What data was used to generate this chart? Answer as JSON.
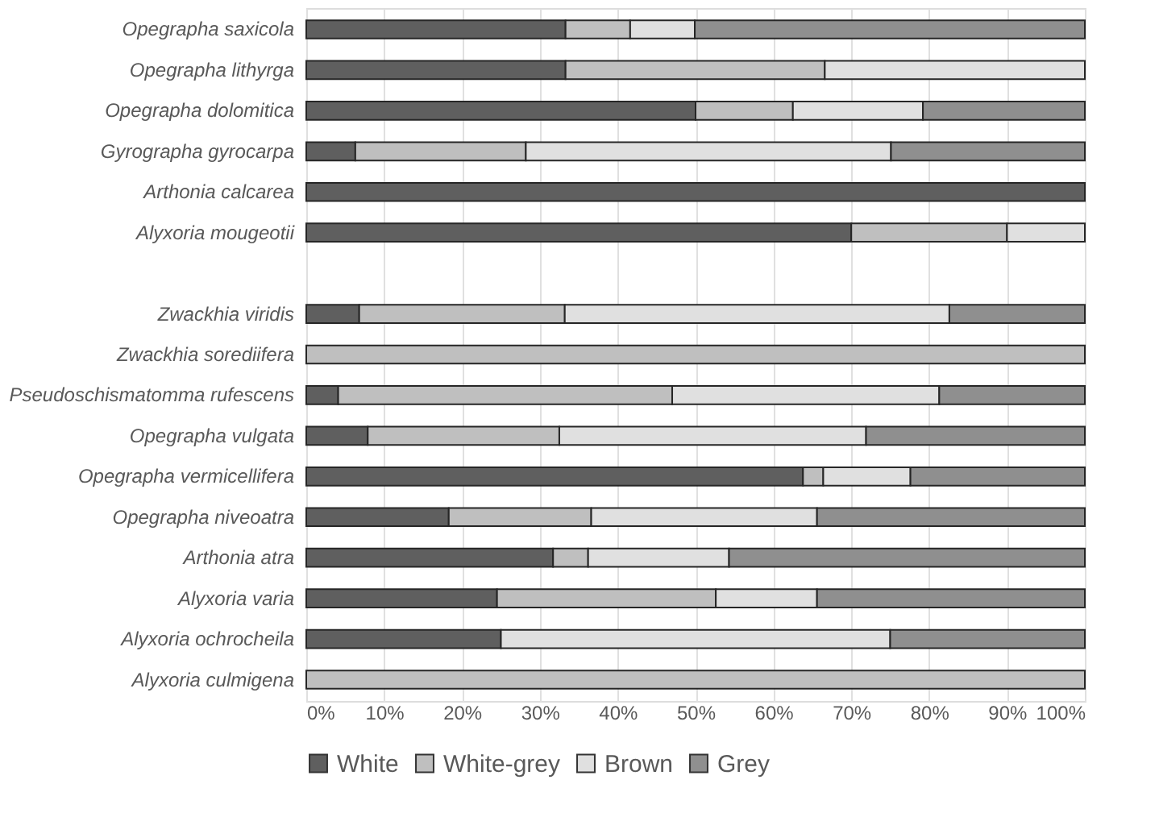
{
  "chart_data": {
    "type": "bar",
    "orientation": "horizontal",
    "stacked": true,
    "categories": [
      "Opegrapha saxicola",
      "Opegrapha lithyrga",
      "Opegrapha dolomitica",
      "Gyrographa gyrocarpa",
      "Arthonia calcarea",
      "Alyxoria mougeotii",
      null,
      "Zwackhia viridis",
      "Zwackhia sorediifera",
      "Pseudoschismatomma rufescens",
      "Opegrapha vulgata",
      "Opegrapha vermicellifera",
      "Opegrapha niveoatra",
      "Arthonia atra",
      "Alyxoria varia",
      "Alyxoria ochrocheila",
      "Alyxoria culmigena"
    ],
    "series": [
      {
        "name": "White",
        "color": "#5f5f5f",
        "values": [
          33.3,
          33.3,
          50,
          6.3,
          100,
          70,
          null,
          6.8,
          0,
          4.1,
          7.9,
          63.8,
          18.3,
          31.7,
          24.5,
          25,
          0
        ]
      },
      {
        "name": "White-grey",
        "color": "#bfbfbf",
        "values": [
          8.3,
          33.3,
          12.5,
          21.9,
          0,
          20,
          null,
          26.4,
          100,
          42.9,
          24.6,
          2.6,
          18.3,
          4.5,
          28.1,
          0,
          100
        ]
      },
      {
        "name": "Brown",
        "color": "#e0e0e0",
        "values": [
          8.3,
          33.4,
          16.7,
          46.9,
          0,
          10,
          null,
          49.4,
          0,
          34.3,
          39.4,
          11.2,
          29,
          18.1,
          13,
          50,
          0
        ]
      },
      {
        "name": "Grey",
        "color": "#8f8f8f",
        "values": [
          50.1,
          0,
          20.8,
          24.9,
          0,
          0,
          null,
          17.4,
          0,
          18.7,
          28.1,
          22.4,
          34.4,
          45.7,
          34.4,
          25,
          0
        ]
      }
    ],
    "xlim": [
      0,
      100
    ],
    "xticks": [
      {
        "value": 0,
        "label": "0%"
      },
      {
        "value": 10,
        "label": "10%"
      },
      {
        "value": 20,
        "label": "20%"
      },
      {
        "value": 30,
        "label": "30%"
      },
      {
        "value": 40,
        "label": "40%"
      },
      {
        "value": 50,
        "label": "50%"
      },
      {
        "value": 60,
        "label": "60%"
      },
      {
        "value": 70,
        "label": "70%"
      },
      {
        "value": 80,
        "label": "80%"
      },
      {
        "value": 90,
        "label": "90%"
      },
      {
        "value": 100,
        "label": "100%"
      }
    ],
    "grid": "x",
    "legend": "bottom"
  }
}
